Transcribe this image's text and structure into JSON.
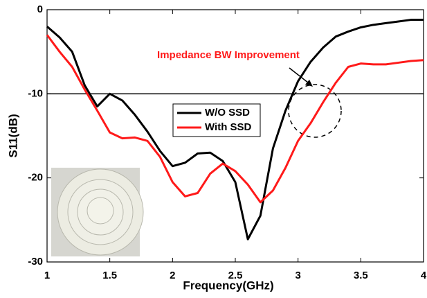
{
  "chart_data": {
    "type": "line",
    "xlabel": "Frequency(GHz)",
    "ylabel": "S11(dB)",
    "annotation": "Impedance BW Improvement",
    "annotation_color": "#ff1a1a",
    "hline": -10,
    "x": [
      1,
      1.1,
      1.2,
      1.3,
      1.4,
      1.5,
      1.6,
      1.7,
      1.8,
      1.9,
      2,
      2.1,
      2.2,
      2.3,
      2.4,
      2.5,
      2.6,
      2.7,
      2.8,
      2.9,
      3,
      3.1,
      3.2,
      3.3,
      3.4,
      3.5,
      3.6,
      3.7,
      3.8,
      3.9,
      4
    ],
    "series": [
      {
        "name": "W/O SSD",
        "color": "#000000",
        "values": [
          -2,
          -3.3,
          -5,
          -9,
          -11.5,
          -10,
          -10.8,
          -12.5,
          -14.5,
          -16.8,
          -18.6,
          -18.2,
          -17.1,
          -17,
          -18,
          -20.5,
          -27.3,
          -24.5,
          -16.5,
          -12,
          -8.5,
          -6.2,
          -4.5,
          -3.2,
          -2.6,
          -2.1,
          -1.8,
          -1.6,
          -1.4,
          -1.2,
          -1.2
        ]
      },
      {
        "name": "With SSD",
        "color": "#ff1a1a",
        "values": [
          -3,
          -5,
          -6.8,
          -9.5,
          -12,
          -14.6,
          -15.3,
          -15.2,
          -15.6,
          -17.5,
          -20.5,
          -22.2,
          -21.8,
          -19.5,
          -18.3,
          -19.2,
          -20.8,
          -22.9,
          -21.5,
          -18.8,
          -15.6,
          -13.5,
          -11,
          -8.7,
          -6.8,
          -6.4,
          -6.5,
          -6.5,
          -6.3,
          -6.1,
          -6
        ]
      }
    ],
    "xlim": [
      1,
      4
    ],
    "xticks": [
      1,
      1.5,
      2,
      2.5,
      3,
      3.5,
      4
    ],
    "ylim": [
      -30,
      0
    ],
    "yticks": [
      0,
      -10,
      -20,
      -30
    ]
  }
}
